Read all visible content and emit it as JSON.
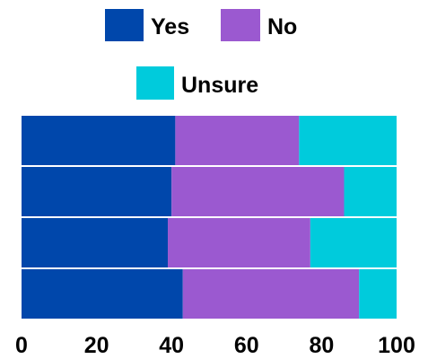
{
  "chart_data": {
    "type": "bar",
    "orientation": "horizontal",
    "stacked": true,
    "categories": [
      "",
      "",
      "",
      ""
    ],
    "series": [
      {
        "name": "Yes",
        "color": "#0047ab",
        "values": [
          41,
          40,
          39,
          43
        ]
      },
      {
        "name": "No",
        "color": "#9b59d0",
        "values": [
          33,
          46,
          38,
          47
        ]
      },
      {
        "name": "Unsure",
        "color": "#00cbdc",
        "values": [
          26,
          14,
          23,
          10
        ]
      }
    ],
    "title": "",
    "xlabel": "",
    "ylabel": "",
    "xlim": [
      0,
      100
    ],
    "xticks": [
      "0",
      "20",
      "40",
      "60",
      "80",
      "100"
    ],
    "grid": false,
    "legend_position": "top"
  }
}
